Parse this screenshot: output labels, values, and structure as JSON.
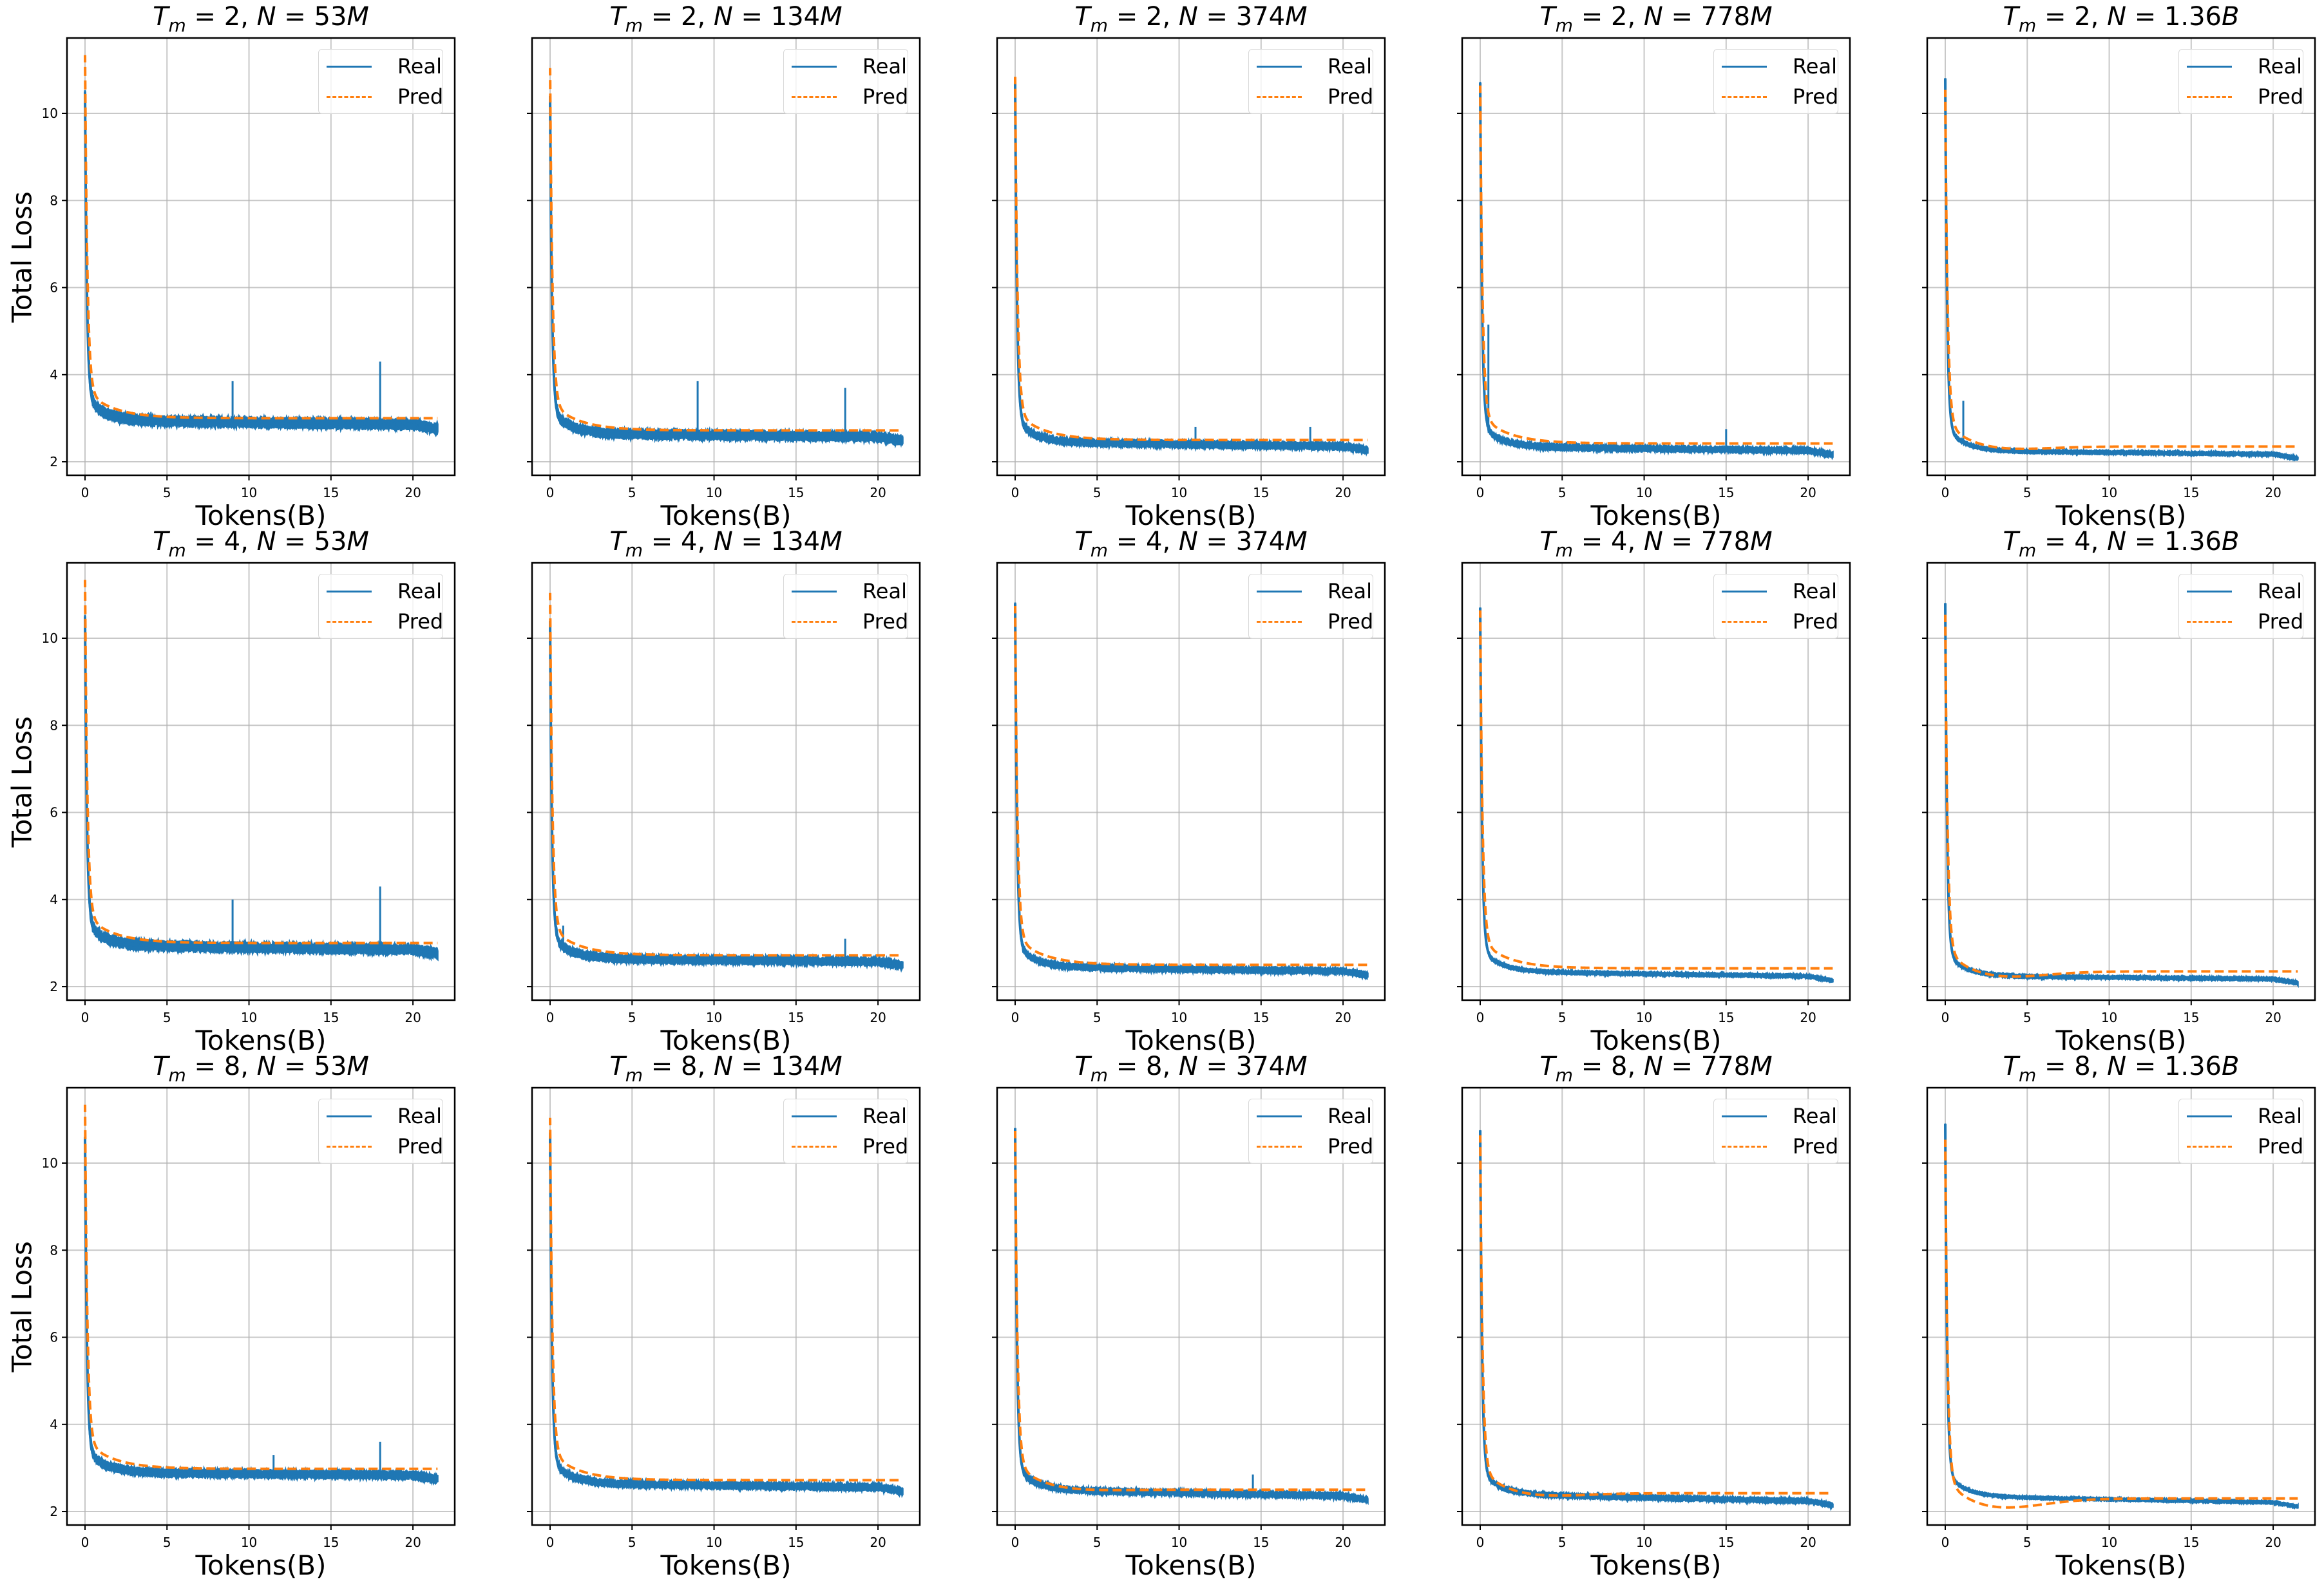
{
  "figure": {
    "ylabel": "Total Loss",
    "xlabel": "Tokens(B)",
    "legend": {
      "real_label": "Real",
      "pred_label": "Pred"
    },
    "colors": {
      "real": "#1f77b4",
      "pred": "#ff7f0e",
      "grid": "#b0b0b0",
      "axes": "#000000"
    }
  },
  "chart_data": {
    "type": "line",
    "layout": {
      "rows": 3,
      "cols": 5,
      "sharey": true,
      "grid": true,
      "legend_position": "upper right"
    },
    "xlabel": "Tokens(B)",
    "ylabel": "Total Loss",
    "xlim": [
      -1.1,
      22.55
    ],
    "ylim": [
      1.69,
      11.73
    ],
    "xticks": [
      0,
      5,
      10,
      15,
      20
    ],
    "yticks": [
      2,
      4,
      6,
      8,
      10
    ],
    "legend": [
      "Real",
      "Pred"
    ],
    "panels": [
      {
        "title": "T_m = 2, N = 53M",
        "Tm": 2,
        "N": "53M",
        "real_start": 10.5,
        "pred_start": 11.3,
        "real_plateau": 3.15,
        "real_end": 2.9,
        "pred_end": 3.0,
        "pred_offset": 0.0,
        "noise": 0.09,
        "spikes": [
          [
            9.0,
            3.85
          ],
          [
            18.0,
            4.3
          ]
        ]
      },
      {
        "title": "T_m = 2, N = 134M",
        "Tm": 2,
        "N": "134M",
        "real_start": 10.4,
        "pred_start": 11.0,
        "real_plateau": 2.85,
        "real_end": 2.62,
        "pred_end": 2.72,
        "pred_offset": 0.0,
        "noise": 0.08,
        "spikes": [
          [
            9.0,
            3.85
          ],
          [
            18.0,
            3.7
          ]
        ]
      },
      {
        "title": "T_m = 2, N = 374M",
        "Tm": 2,
        "N": "374M",
        "real_start": 10.7,
        "pred_start": 10.8,
        "real_plateau": 2.65,
        "real_end": 2.4,
        "pred_end": 2.5,
        "pred_offset": 0.0,
        "noise": 0.06,
        "spikes": [
          [
            11.0,
            2.8
          ],
          [
            18.0,
            2.8
          ]
        ]
      },
      {
        "title": "T_m = 2, N = 778M",
        "Tm": 2,
        "N": "778M",
        "real_start": 10.7,
        "pred_start": 10.6,
        "real_plateau": 2.55,
        "real_end": 2.3,
        "pred_end": 2.42,
        "pred_offset": 0.0,
        "noise": 0.05,
        "spikes": [
          [
            0.5,
            5.15
          ],
          [
            15.0,
            2.75
          ]
        ]
      },
      {
        "title": "T_m = 2, N = 1.36B",
        "Tm": 2,
        "N": "1.36B",
        "real_start": 10.8,
        "pred_start": 10.5,
        "real_plateau": 2.45,
        "real_end": 2.22,
        "pred_end": 2.35,
        "pred_offset": -0.12,
        "noise": 0.03,
        "spikes": [
          [
            1.1,
            3.4
          ]
        ]
      },
      {
        "title": "T_m = 4, N = 53M",
        "Tm": 4,
        "N": "53M",
        "real_start": 10.5,
        "pred_start": 11.3,
        "real_plateau": 3.15,
        "real_end": 2.9,
        "pred_end": 3.0,
        "pred_offset": 0.0,
        "noise": 0.09,
        "spikes": [
          [
            9.0,
            4.0
          ],
          [
            18.0,
            4.3
          ]
        ]
      },
      {
        "title": "T_m = 4, N = 134M",
        "Tm": 4,
        "N": "134M",
        "real_start": 10.4,
        "pred_start": 11.0,
        "real_plateau": 2.85,
        "real_end": 2.62,
        "pred_end": 2.72,
        "pred_offset": 0.0,
        "noise": 0.07,
        "spikes": [
          [
            0.8,
            3.4
          ],
          [
            18.0,
            3.1
          ]
        ]
      },
      {
        "title": "T_m = 4, N = 374M",
        "Tm": 4,
        "N": "374M",
        "real_start": 10.8,
        "pred_start": 10.7,
        "real_plateau": 2.65,
        "real_end": 2.4,
        "pred_end": 2.5,
        "pred_offset": 0.0,
        "noise": 0.05,
        "spikes": []
      },
      {
        "title": "T_m = 4, N = 778M",
        "Tm": 4,
        "N": "778M",
        "real_start": 10.7,
        "pred_start": 10.6,
        "real_plateau": 2.55,
        "real_end": 2.28,
        "pred_end": 2.42,
        "pred_offset": 0.0,
        "noise": 0.03,
        "spikes": []
      },
      {
        "title": "T_m = 4, N = 1.36B",
        "Tm": 4,
        "N": "1.36B",
        "real_start": 10.8,
        "pred_start": 10.5,
        "real_plateau": 2.45,
        "real_end": 2.22,
        "pred_end": 2.35,
        "pred_offset": -0.2,
        "noise": 0.03,
        "spikes": []
      },
      {
        "title": "T_m = 8, N = 53M",
        "Tm": 8,
        "N": "53M",
        "real_start": 10.6,
        "pred_start": 11.3,
        "real_plateau": 3.1,
        "real_end": 2.88,
        "pred_end": 2.98,
        "pred_offset": 0.0,
        "noise": 0.07,
        "spikes": [
          [
            11.5,
            3.3
          ],
          [
            18.0,
            3.6
          ]
        ]
      },
      {
        "title": "T_m = 8, N = 134M",
        "Tm": 8,
        "N": "134M",
        "real_start": 10.7,
        "pred_start": 11.0,
        "real_plateau": 2.85,
        "real_end": 2.6,
        "pred_end": 2.72,
        "pred_offset": 0.0,
        "noise": 0.06,
        "spikes": []
      },
      {
        "title": "T_m = 8, N = 374M",
        "Tm": 8,
        "N": "374M",
        "real_start": 10.8,
        "pred_start": 10.7,
        "real_plateau": 2.7,
        "real_end": 2.4,
        "pred_end": 2.5,
        "pred_offset": -0.05,
        "noise": 0.05,
        "spikes": [
          [
            14.5,
            2.85
          ]
        ]
      },
      {
        "title": "T_m = 8, N = 778M",
        "Tm": 8,
        "N": "778M",
        "real_start": 10.75,
        "pred_start": 10.6,
        "real_plateau": 2.6,
        "real_end": 2.28,
        "pred_end": 2.42,
        "pred_offset": -0.12,
        "noise": 0.04,
        "spikes": []
      },
      {
        "title": "T_m = 8, N = 1.36B",
        "Tm": 8,
        "N": "1.36B",
        "real_start": 10.9,
        "pred_start": 10.5,
        "real_plateau": 2.55,
        "real_end": 2.25,
        "pred_end": 2.3,
        "pred_offset": -0.3,
        "noise": 0.025,
        "spikes": []
      }
    ]
  }
}
